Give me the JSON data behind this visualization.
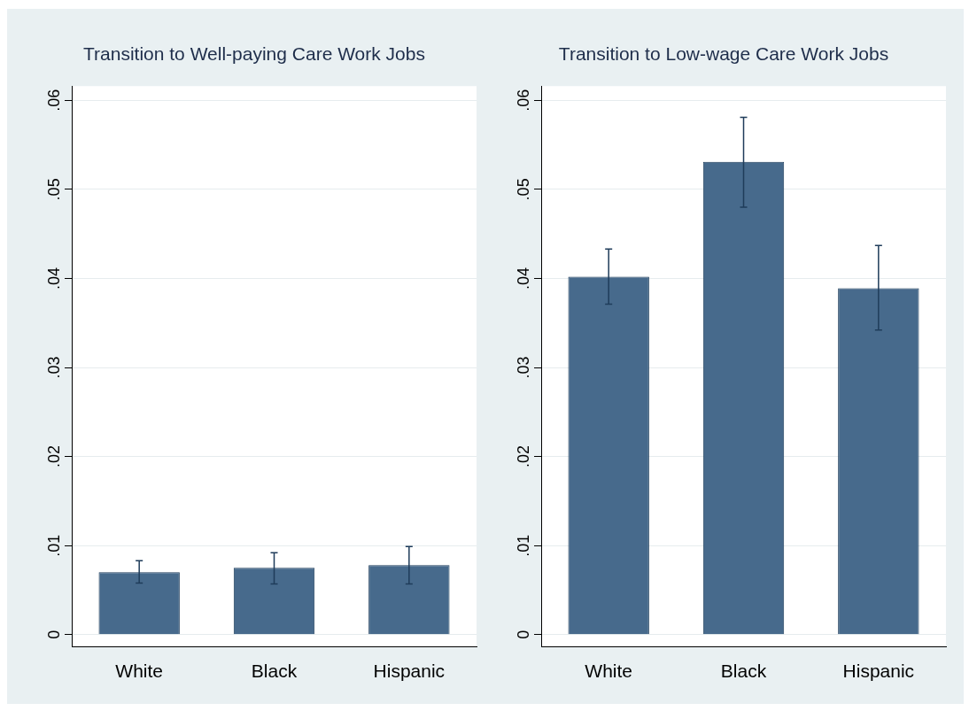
{
  "chart_data": [
    {
      "type": "bar",
      "title": "Transition to Well-paying Care Work Jobs",
      "categories": [
        "White",
        "Black",
        "Hispanic"
      ],
      "series": [
        {
          "color": "#476a8c",
          "values": [
            0.007,
            0.0075,
            0.0078
          ],
          "errors": [
            [
              0.0058,
              0.0083
            ],
            [
              0.0057,
              0.0092
            ],
            [
              0.0057,
              0.0099
            ]
          ]
        }
      ],
      "ylim": [
        -0.0014,
        0.0616
      ],
      "yticks": [
        {
          "value": 0,
          "label": "0"
        },
        {
          "value": 0.01,
          "label": ".01"
        },
        {
          "value": 0.02,
          "label": ".02"
        },
        {
          "value": 0.03,
          "label": ".03"
        },
        {
          "value": 0.04,
          "label": ".04"
        },
        {
          "value": 0.05,
          "label": ".05"
        },
        {
          "value": 0.06,
          "label": ".06"
        }
      ],
      "grid": "y",
      "legend": false
    },
    {
      "type": "bar",
      "title": "Transition to Low-wage Care Work Jobs",
      "categories": [
        "White",
        "Black",
        "Hispanic"
      ],
      "series": [
        {
          "color": "#476a8c",
          "values": [
            0.0402,
            0.0531,
            0.0389
          ],
          "errors": [
            [
              0.0371,
              0.0433
            ],
            [
              0.048,
              0.0581
            ],
            [
              0.0342,
              0.0437
            ]
          ]
        }
      ],
      "ylim": [
        -0.0014,
        0.0616
      ],
      "yticks": [
        {
          "value": 0,
          "label": "0"
        },
        {
          "value": 0.01,
          "label": ".01"
        },
        {
          "value": 0.02,
          "label": ".02"
        },
        {
          "value": 0.03,
          "label": ".03"
        },
        {
          "value": 0.04,
          "label": ".04"
        },
        {
          "value": 0.05,
          "label": ".05"
        },
        {
          "value": 0.06,
          "label": ".06"
        }
      ],
      "grid": "y",
      "legend": false
    }
  ]
}
